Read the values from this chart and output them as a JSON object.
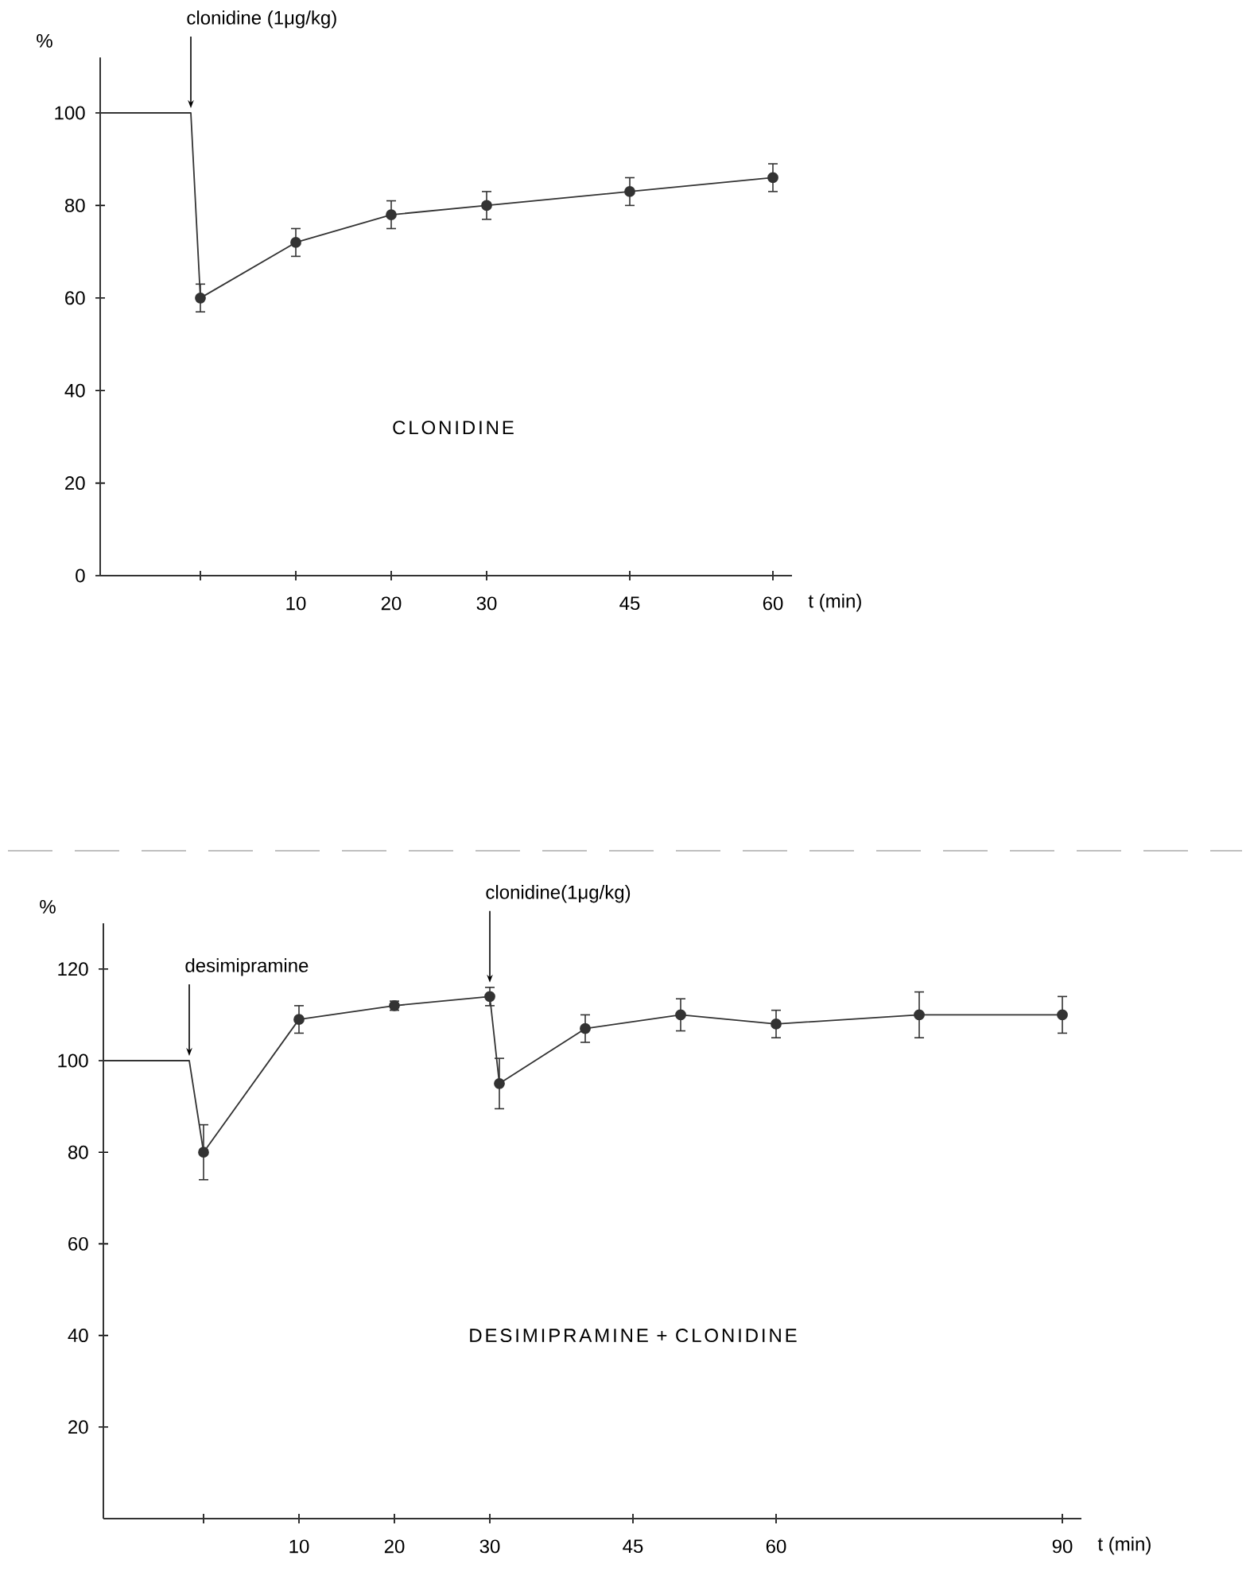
{
  "chart_data": [
    {
      "type": "line",
      "ylabel": "%",
      "xlabel": "t (min)",
      "xlim": [
        -10.5,
        62
      ],
      "ylim": [
        0,
        112
      ],
      "xticks": [
        {
          "value": 0,
          "label": null
        },
        10,
        20,
        30,
        45,
        60
      ],
      "yticks": [
        0,
        20,
        40,
        60,
        80,
        100
      ],
      "series": [
        {
          "color": "#333333",
          "marker": "none",
          "x": [
            -10.5,
            -1,
            0
          ],
          "values": [
            100,
            100,
            60
          ]
        },
        {
          "color": "#333333",
          "marker": "circle",
          "x": [
            0,
            10,
            20,
            30,
            45,
            60
          ],
          "values": [
            60,
            72,
            78,
            80,
            83,
            86
          ],
          "errors": [
            3,
            3,
            3,
            3,
            3,
            3
          ]
        }
      ],
      "annotations": [
        {
          "text": "clonidine (1μg/kg)",
          "x": -1,
          "y": 100
        },
        "CLONIDINE"
      ]
    },
    {
      "type": "line",
      "ylabel": "%",
      "xlabel": "t (min)",
      "xlim": [
        -10.5,
        92
      ],
      "ylim": [
        0,
        130
      ],
      "xticks": [
        {
          "value": 0,
          "label": null
        },
        10,
        20,
        30,
        45,
        60,
        90
      ],
      "yticks": [
        20,
        40,
        60,
        80,
        100,
        120
      ],
      "series": [
        {
          "color": "#333333",
          "marker": "none",
          "x": [
            -10.5,
            -1.5,
            0
          ],
          "values": [
            100,
            100,
            80
          ]
        },
        {
          "color": "#333333",
          "marker": "circle",
          "x": [
            0,
            10,
            20,
            30,
            31,
            40,
            50,
            60,
            75,
            90
          ],
          "values": [
            80,
            109,
            112,
            114,
            95,
            107,
            110,
            108,
            110,
            110
          ],
          "errors": [
            6,
            3,
            1,
            2,
            5.5,
            3,
            3.5,
            3,
            5,
            4
          ]
        }
      ],
      "annotations": [
        {
          "text": "desimipramine",
          "x": -1.5,
          "y": 100
        },
        {
          "text": "clonidine(1μg/kg)",
          "x": 30,
          "y": 116
        },
        "DESIMIPRAMINE + CLONIDINE"
      ]
    }
  ]
}
